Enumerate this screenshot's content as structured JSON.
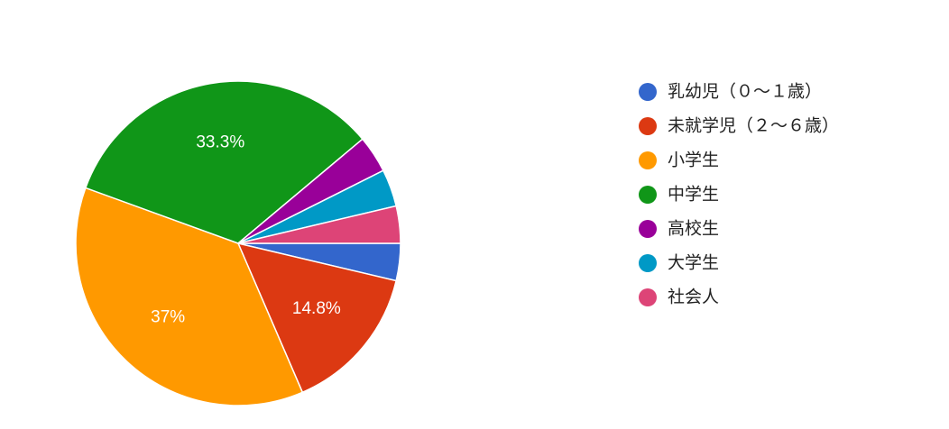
{
  "chart_data": {
    "type": "pie",
    "categories": [
      "乳幼児（０〜１歳）",
      "未就学児（２〜６歳）",
      "小学生",
      "中学生",
      "高校生",
      "大学生",
      "社会人"
    ],
    "values": [
      3.7,
      14.8,
      37,
      33.3,
      3.7,
      3.7,
      3.7
    ],
    "value_labels": [
      null,
      "14.8%",
      "37%",
      "33.3%",
      null,
      null,
      null
    ],
    "colors": [
      "#3366cc",
      "#dc3912",
      "#ff9900",
      "#109618",
      "#990099",
      "#0099c6",
      "#dd4477"
    ],
    "legend": "right"
  }
}
